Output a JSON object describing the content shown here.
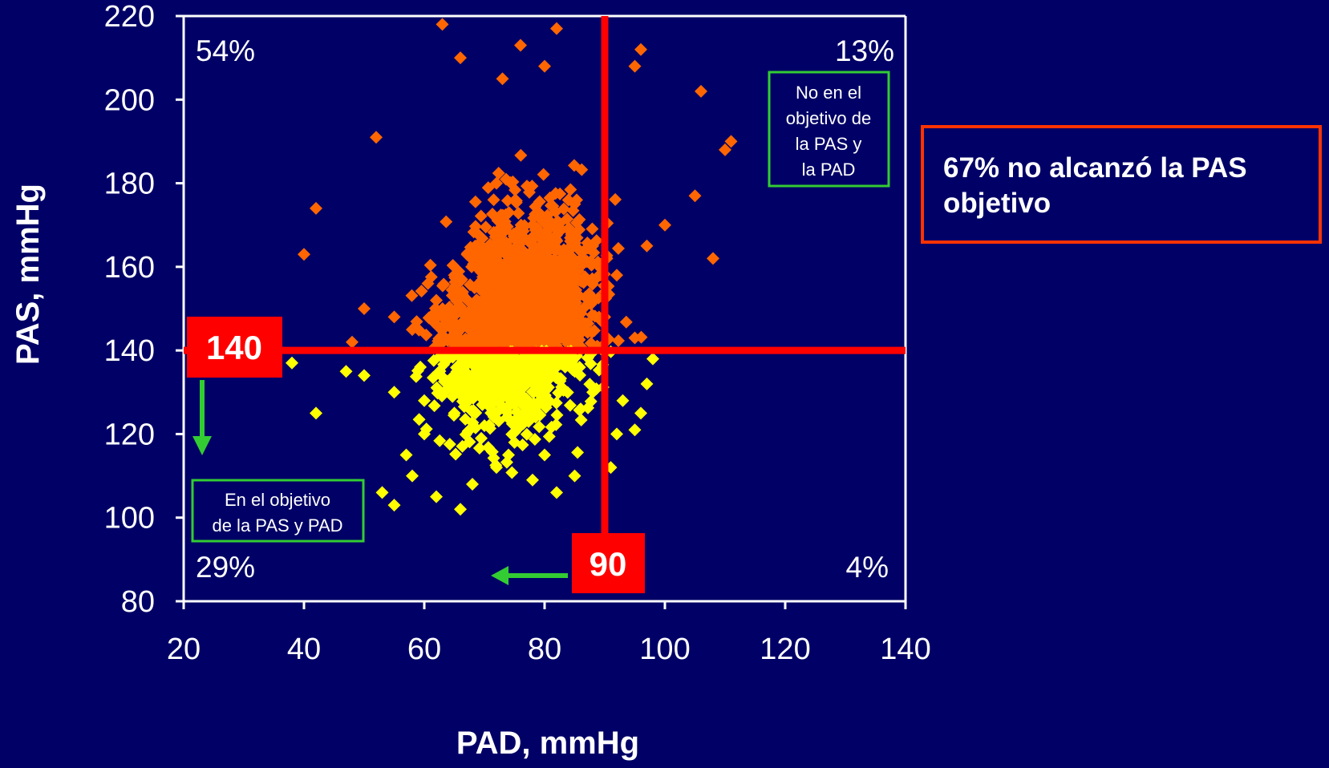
{
  "chart_data": {
    "type": "scatter",
    "title": "",
    "xlabel": "PAD, mmHg",
    "ylabel": "PAS, mmHg",
    "xlim": [
      20,
      140
    ],
    "ylim": [
      80,
      220
    ],
    "x_ticks": [
      "20",
      "40",
      "60",
      "80",
      "100",
      "120",
      "140"
    ],
    "y_ticks": [
      "80",
      "100",
      "120",
      "140",
      "160",
      "180",
      "200",
      "220"
    ],
    "grid": false,
    "thresholds": {
      "sbp": 140,
      "dbp": 90
    },
    "threshold_labels": {
      "sbp": "140",
      "dbp": "90"
    },
    "series_colors": {
      "above_sbp_target": "#ff6600",
      "at_sbp_target": "#ffff00"
    },
    "threshold_color": "#ff0000",
    "arrow_color": "#33cc33",
    "box_border_color": "#33cc33",
    "quadrant_labels": {
      "top_left": "54%",
      "top_right": "13%",
      "bottom_left": "29%",
      "bottom_right": "4%"
    },
    "annotations": {
      "top_right_box": [
        "No en el",
        "objetivo de",
        "la PAS y",
        "la PAD"
      ],
      "bottom_left_box": [
        "En el objetivo",
        "de la PAS y PAD"
      ]
    },
    "points_sample": [
      [
        63,
        218
      ],
      [
        66,
        210
      ],
      [
        76,
        213
      ],
      [
        82,
        217
      ],
      [
        73,
        205
      ],
      [
        80,
        208
      ],
      [
        96,
        212
      ],
      [
        95,
        208
      ],
      [
        106,
        202
      ],
      [
        52,
        191
      ],
      [
        42,
        174
      ],
      [
        40,
        163
      ],
      [
        111,
        190
      ],
      [
        110,
        188
      ],
      [
        105,
        177
      ],
      [
        100,
        170
      ],
      [
        97,
        165
      ],
      [
        108,
        162
      ],
      [
        50,
        150
      ],
      [
        55,
        148
      ],
      [
        58,
        145
      ],
      [
        48,
        142
      ],
      [
        75,
        160
      ],
      [
        82,
        155
      ],
      [
        70,
        150
      ],
      [
        88,
        165
      ],
      [
        92,
        158
      ],
      [
        78,
        170
      ],
      [
        85,
        175
      ],
      [
        72,
        180
      ],
      [
        65,
        158
      ],
      [
        68,
        145
      ],
      [
        90,
        148
      ],
      [
        95,
        143
      ],
      [
        80,
        143
      ],
      [
        62,
        152
      ],
      [
        38,
        137
      ],
      [
        42,
        125
      ],
      [
        47,
        135
      ],
      [
        50,
        134
      ],
      [
        55,
        130
      ],
      [
        60,
        128
      ],
      [
        65,
        125
      ],
      [
        70,
        122
      ],
      [
        75,
        118
      ],
      [
        80,
        115
      ],
      [
        85,
        110
      ],
      [
        72,
        112
      ],
      [
        68,
        108
      ],
      [
        66,
        102
      ],
      [
        62,
        105
      ],
      [
        55,
        103
      ],
      [
        53,
        106
      ],
      [
        58,
        110
      ],
      [
        91,
        112
      ],
      [
        92,
        120
      ],
      [
        96,
        125
      ],
      [
        95,
        121
      ],
      [
        88,
        130
      ],
      [
        85,
        135
      ],
      [
        82,
        106
      ],
      [
        78,
        109
      ],
      [
        74,
        115
      ],
      [
        60,
        120
      ],
      [
        57,
        115
      ],
      [
        64,
        138
      ],
      [
        86,
        126
      ],
      [
        98,
        138
      ],
      [
        97,
        132
      ],
      [
        93,
        128
      ]
    ]
  },
  "callout": {
    "text": "67% no alcanzó la PAS  objetivo"
  }
}
